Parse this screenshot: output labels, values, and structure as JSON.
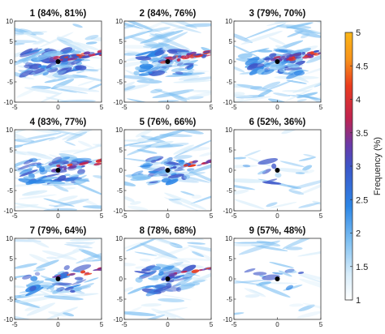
{
  "chart_data": {
    "type": "heatmap",
    "layout": "3x3 small multiples",
    "axes": {
      "xlim": [
        -5,
        5
      ],
      "ylim": [
        -10,
        10
      ],
      "xticks": [
        -5,
        0,
        5
      ],
      "yticks": [
        -10,
        -5,
        0,
        5,
        10
      ]
    },
    "colorbar": {
      "label": "Frequency (%)",
      "range": [
        1,
        5
      ],
      "ticks": [
        1,
        1.5,
        2,
        2.5,
        3,
        3.5,
        4,
        4.5,
        5
      ],
      "colors": [
        "#ffffff",
        "#d6ecfa",
        "#7fc0f2",
        "#2c86e6",
        "#3d55c8",
        "#6a3aa8",
        "#c0234f",
        "#ea3b1e",
        "#f7931b",
        "#fbb617"
      ]
    },
    "panels": [
      {
        "title": "1 (84%, 81%)",
        "marker": [
          0,
          0
        ],
        "intensity": 1.0,
        "hot_plume": 1.0
      },
      {
        "title": "2 (84%, 76%)",
        "marker": [
          0,
          0
        ],
        "intensity": 0.95,
        "hot_plume": 0.9
      },
      {
        "title": "3 (79%, 70%)",
        "marker": [
          0,
          0
        ],
        "intensity": 0.9,
        "hot_plume": 0.85
      },
      {
        "title": "4 (83%, 77%)",
        "marker": [
          0,
          0
        ],
        "intensity": 0.85,
        "hot_plume": 0.7
      },
      {
        "title": "5 (76%, 66%)",
        "marker": [
          0,
          0
        ],
        "intensity": 0.65,
        "hot_plume": 0.35
      },
      {
        "title": "6 (52%, 36%)",
        "marker": [
          0,
          0
        ],
        "intensity": 0.15,
        "hot_plume": 0.0
      },
      {
        "title": "7 (79%, 64%)",
        "marker": [
          0,
          0
        ],
        "intensity": 0.6,
        "hot_plume": 0.3
      },
      {
        "title": "8 (78%, 68%)",
        "marker": [
          0,
          0
        ],
        "intensity": 0.6,
        "hot_plume": 0.35
      },
      {
        "title": "9 (57%, 48%)",
        "marker": [
          0,
          0
        ],
        "intensity": 0.2,
        "hot_plume": 0.0
      }
    ]
  }
}
